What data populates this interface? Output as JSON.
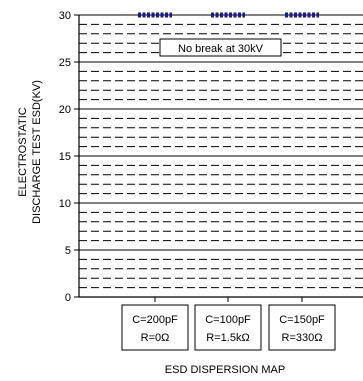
{
  "chart_data": {
    "type": "range",
    "title": "",
    "xlabel": "ESD DISPERSION MAP",
    "ylabel": [
      "ELECTROSTATIC",
      "DISCHARGE TEST ESD(KV)"
    ],
    "ylim": [
      0,
      30
    ],
    "yticks": [
      "0",
      "5",
      "10",
      "15",
      "20",
      "25",
      "30"
    ],
    "grid": true,
    "annotation": "No break at 30kV",
    "categories": [
      {
        "line1": "C=200pF",
        "line2": "R=0Ω"
      },
      {
        "line1": "C=100pF",
        "line2": "R=1.5kΩ"
      },
      {
        "line1": "C=150pF",
        "line2": "R=330Ω"
      }
    ],
    "series": [
      {
        "values": [
          30,
          30,
          30
        ]
      }
    ]
  },
  "colors": {
    "marker": "#1a1a8c",
    "axis": "#000000",
    "grid": "#000000"
  }
}
